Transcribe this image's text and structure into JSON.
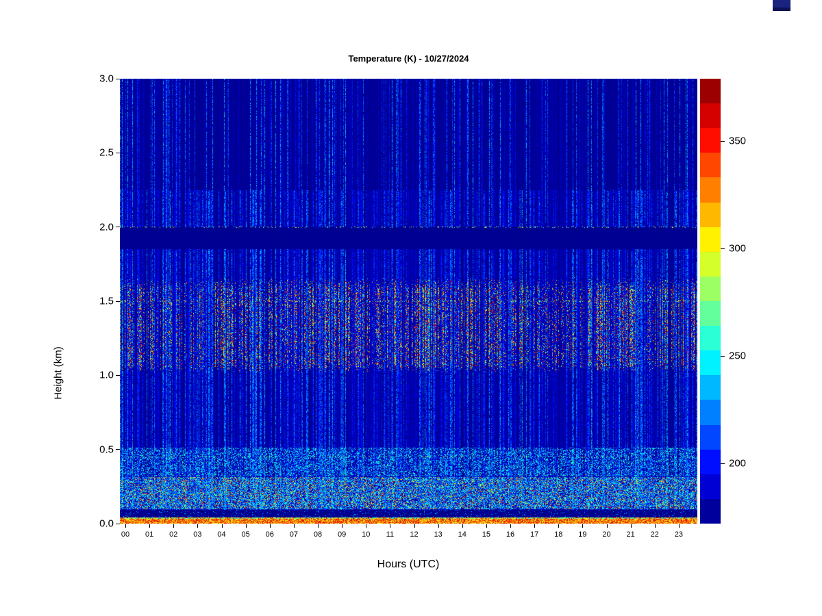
{
  "page": {
    "background_color": "#ffffff"
  },
  "corner_artifact": {
    "top_color": "#1a2380",
    "bottom_color": "#0a1253"
  },
  "chart_data": {
    "type": "heatmap",
    "title": "Temperature (K) - 10/27/2024",
    "xlabel": "Hours (UTC)",
    "ylabel": "Height (km)",
    "x_tick_labels": [
      "00",
      "01",
      "02",
      "03",
      "04",
      "05",
      "06",
      "07",
      "08",
      "09",
      "10",
      "11",
      "12",
      "13",
      "14",
      "15",
      "16",
      "17",
      "18",
      "19",
      "20",
      "21",
      "22",
      "23"
    ],
    "x_range_hours": [
      0,
      24
    ],
    "y_tick_labels": [
      "0.0",
      "0.5",
      "1.0",
      "1.5",
      "2.0",
      "2.5",
      "3.0"
    ],
    "y_tick_values": [
      0,
      0.5,
      1.0,
      1.5,
      2.0,
      2.5,
      3.0
    ],
    "y_range_km": [
      0,
      3
    ],
    "grid": false,
    "legend": "colorbar-right",
    "colormap": "jet",
    "colorbar": {
      "position": "right",
      "tick_labels": [
        "350",
        "300",
        "250",
        "200"
      ],
      "tick_values": [
        350,
        300,
        250,
        200
      ],
      "value_range_K": [
        172,
        379
      ],
      "n_segments": 18
    },
    "background_temperature_K": 174,
    "features": [
      {
        "name": "bottom-surface-layer",
        "y_km": [
          0.0,
          0.043
        ],
        "character": "continuous warm orange-red layer along bottom edge",
        "temp_K": [
          288,
          370
        ]
      },
      {
        "name": "dark-gap",
        "y_km": [
          0.043,
          0.093
        ],
        "character": "thin dark navy band",
        "temp_K": [
          172,
          180
        ]
      },
      {
        "name": "low-speckle-band",
        "y_km": [
          0.095,
          0.315
        ],
        "character": "dense yellow-green-red speckles",
        "temp_K": [
          240,
          365
        ]
      },
      {
        "name": "cyan-band",
        "y_km": [
          0.32,
          0.51
        ],
        "character": "cyan and blue speckled band",
        "temp_K": [
          212,
          267
        ]
      },
      {
        "name": "mid-dark-layer",
        "y_km": [
          0.55,
          1.0
        ],
        "character": "dark navy with sparse blue streaks",
        "temp_K": [
          172,
          230
        ]
      },
      {
        "name": "warm-streak-band",
        "y_km": [
          1.02,
          1.66
        ],
        "character": "dense vertical warm streaks, green-yellow-orange-red",
        "temp_K": [
          248,
          366
        ]
      },
      {
        "name": "dark-lane",
        "y_km": [
          1.85,
          2.0
        ],
        "character": "slightly darker horizontal lane",
        "temp_K": [
          172,
          176
        ]
      },
      {
        "name": "upper-blue-streaks",
        "y_km": [
          1.66,
          3.0
        ],
        "character": "sparse bright blue/cyan vertical streaks over dark navy",
        "temp_K": [
          182,
          250
        ]
      }
    ],
    "vertical_streaks": {
      "density": 0.33,
      "temp_K": [
        182,
        247
      ]
    }
  }
}
